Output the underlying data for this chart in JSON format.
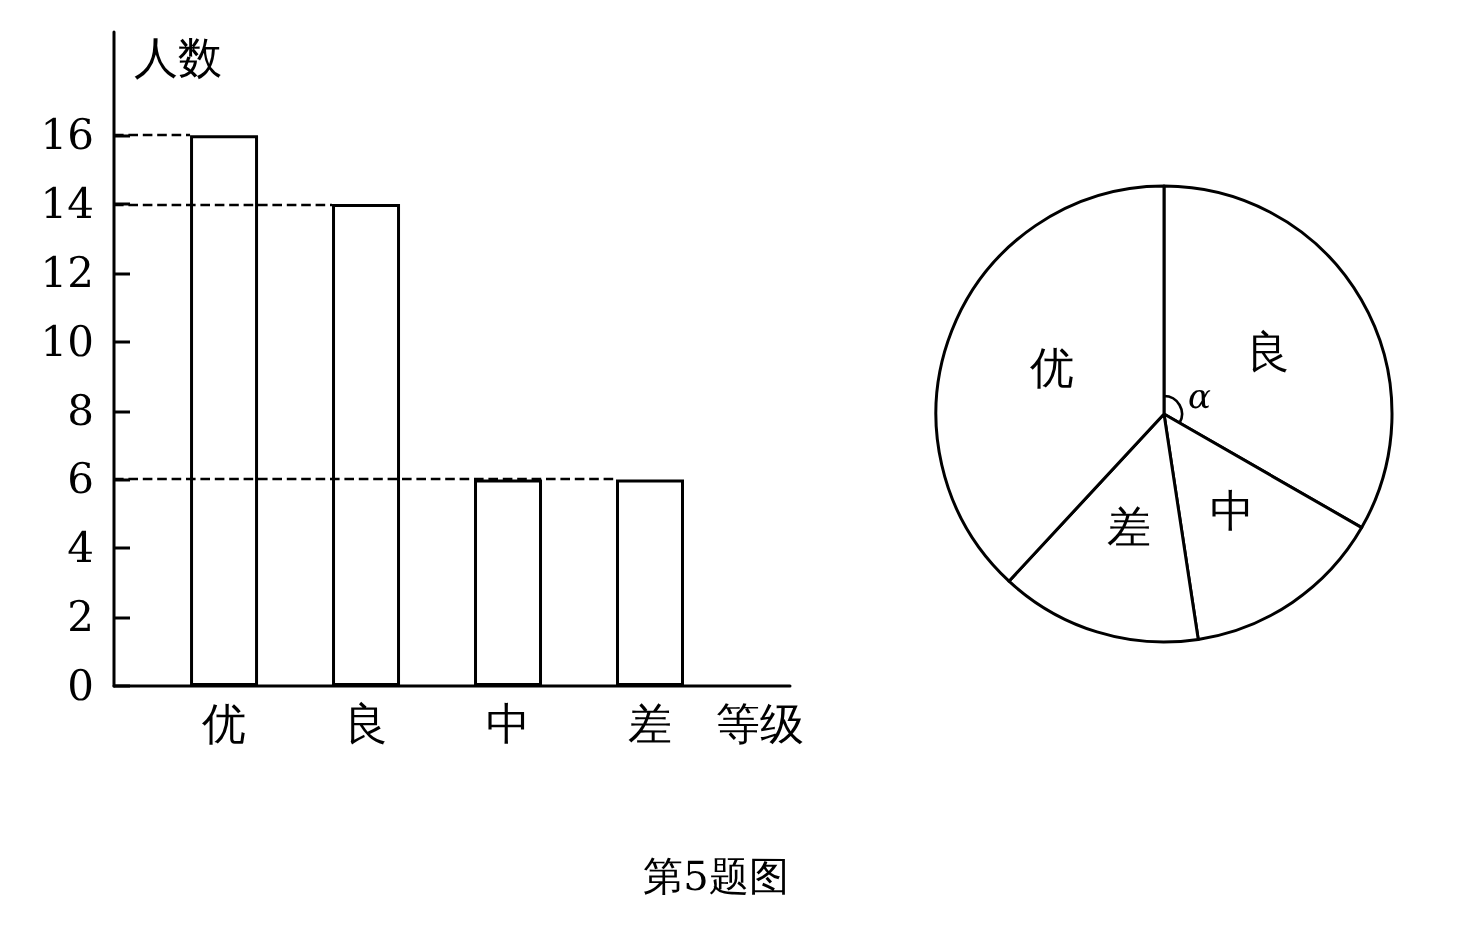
{
  "chart_data": [
    {
      "type": "bar",
      "xlabel": "等级",
      "ylabel": "人数",
      "categories": [
        "优",
        "良",
        "中",
        "差"
      ],
      "values": [
        16,
        14,
        6,
        6
      ],
      "color": "#ffffff",
      "ylim": [
        0,
        19
      ],
      "yticks": [
        0,
        2,
        4,
        6,
        8,
        10,
        12,
        14,
        16
      ],
      "ref_lines": [
        {
          "axis": "y",
          "value": 16,
          "line_style": "dashed"
        },
        {
          "axis": "y",
          "value": 14,
          "line_style": "dashed"
        },
        {
          "axis": "y",
          "value": 6,
          "line_style": "dashed"
        }
      ],
      "annotations": [
        "第5题图"
      ]
    },
    {
      "type": "pie",
      "categories": [
        "良",
        "中",
        "差",
        "优"
      ],
      "values": [
        33.3,
        14.3,
        14.3,
        38.1
      ],
      "colors": [
        "#ffffff",
        "#ffffff",
        "#ffffff",
        "#ffffff"
      ],
      "annotations": [
        "α"
      ]
    }
  ]
}
